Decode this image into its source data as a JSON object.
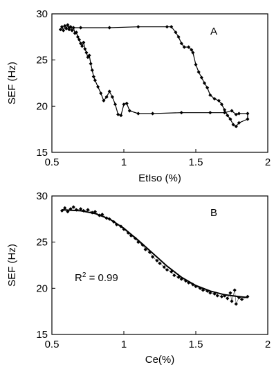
{
  "chart_data": [
    {
      "type": "line",
      "panel_label": "A",
      "xlabel": "EtIso (%)",
      "ylabel": "SEF (Hz)",
      "xlim": [
        0.5,
        2
      ],
      "ylim": [
        15,
        30
      ],
      "x_ticks": [
        "0.5",
        "1",
        "1.5",
        "2"
      ],
      "y_ticks": [
        "15",
        "20",
        "25",
        "30"
      ],
      "grid": false,
      "series": [
        {
          "points": [
            [
              0.56,
              28.3
            ],
            [
              0.57,
              28.6
            ],
            [
              0.58,
              28.2
            ],
            [
              0.59,
              28.7
            ],
            [
              0.6,
              28.4
            ],
            [
              0.61,
              28.8
            ],
            [
              0.62,
              28.3
            ],
            [
              0.63,
              28.6
            ],
            [
              0.64,
              28.2
            ],
            [
              0.65,
              28.5
            ],
            [
              0.66,
              27.9
            ],
            [
              0.67,
              28.0
            ],
            [
              0.68,
              27.5
            ],
            [
              0.69,
              27.2
            ],
            [
              0.7,
              26.8
            ],
            [
              0.71,
              26.5
            ],
            [
              0.72,
              26.9
            ],
            [
              0.73,
              26.2
            ],
            [
              0.74,
              25.8
            ],
            [
              0.75,
              25.3
            ],
            [
              0.76,
              25.5
            ],
            [
              0.77,
              24.6
            ],
            [
              0.78,
              23.9
            ],
            [
              0.79,
              23.2
            ],
            [
              0.8,
              22.8
            ],
            [
              0.82,
              22.1
            ],
            [
              0.84,
              21.4
            ],
            [
              0.86,
              20.6
            ],
            [
              0.88,
              21.0
            ],
            [
              0.9,
              21.6
            ],
            [
              0.92,
              21.0
            ],
            [
              0.94,
              20.2
            ],
            [
              0.96,
              19.1
            ],
            [
              0.98,
              19.0
            ],
            [
              1.0,
              20.2
            ],
            [
              1.02,
              20.3
            ],
            [
              1.04,
              19.5
            ],
            [
              1.1,
              19.2
            ],
            [
              1.2,
              19.2
            ],
            [
              1.4,
              19.3
            ],
            [
              1.6,
              19.3
            ],
            [
              1.7,
              19.3
            ],
            [
              1.75,
              19.5
            ],
            [
              1.78,
              19.1
            ],
            [
              1.8,
              19.2
            ],
            [
              1.86,
              19.2
            ],
            [
              1.86,
              18.6
            ],
            [
              1.8,
              18.2
            ],
            [
              1.78,
              17.8
            ],
            [
              1.76,
              18.0
            ],
            [
              1.74,
              18.6
            ],
            [
              1.72,
              19.0
            ],
            [
              1.7,
              19.6
            ],
            [
              1.68,
              20.2
            ],
            [
              1.66,
              20.6
            ],
            [
              1.63,
              20.8
            ],
            [
              1.6,
              21.2
            ],
            [
              1.58,
              22.0
            ],
            [
              1.56,
              22.5
            ],
            [
              1.54,
              23.1
            ],
            [
              1.52,
              23.7
            ],
            [
              1.5,
              24.5
            ],
            [
              1.48,
              25.8
            ],
            [
              1.47,
              26.1
            ],
            [
              1.45,
              26.4
            ],
            [
              1.42,
              26.4
            ],
            [
              1.4,
              26.8
            ],
            [
              1.38,
              27.5
            ],
            [
              1.36,
              28.0
            ],
            [
              1.33,
              28.6
            ],
            [
              1.3,
              28.6
            ],
            [
              1.1,
              28.6
            ],
            [
              0.9,
              28.5
            ],
            [
              0.7,
              28.5
            ],
            [
              0.62,
              28.5
            ]
          ]
        }
      ]
    },
    {
      "type": "scatter",
      "panel_label": "B",
      "xlabel": "Ce(%)",
      "ylabel": "SEF (Hz)",
      "xlim": [
        0.5,
        2
      ],
      "ylim": [
        15,
        30
      ],
      "x_ticks": [
        "0.5",
        "1",
        "1.5",
        "2"
      ],
      "y_ticks": [
        "15",
        "20",
        "25",
        "30"
      ],
      "grid": false,
      "annotation": "R2 = 0.99",
      "series": [
        {
          "points": [
            [
              0.57,
              28.4
            ],
            [
              0.59,
              28.7
            ],
            [
              0.61,
              28.3
            ],
            [
              0.63,
              28.6
            ],
            [
              0.65,
              28.8
            ],
            [
              0.67,
              28.5
            ],
            [
              0.7,
              28.6
            ],
            [
              0.72,
              28.4
            ],
            [
              0.75,
              28.5
            ],
            [
              0.78,
              28.2
            ],
            [
              0.8,
              28.3
            ],
            [
              0.83,
              27.9
            ],
            [
              0.85,
              28.0
            ],
            [
              0.88,
              27.6
            ],
            [
              0.9,
              27.5
            ],
            [
              0.93,
              27.2
            ],
            [
              0.95,
              26.9
            ],
            [
              0.98,
              26.7
            ],
            [
              1.0,
              26.4
            ],
            [
              1.03,
              26.0
            ],
            [
              1.05,
              25.7
            ],
            [
              1.08,
              25.4
            ],
            [
              1.1,
              25.0
            ],
            [
              1.13,
              24.7
            ],
            [
              1.15,
              24.2
            ],
            [
              1.18,
              23.9
            ],
            [
              1.2,
              23.4
            ],
            [
              1.23,
              23.0
            ],
            [
              1.25,
              22.7
            ],
            [
              1.28,
              22.3
            ],
            [
              1.3,
              22.0
            ],
            [
              1.33,
              21.8
            ],
            [
              1.35,
              21.4
            ],
            [
              1.38,
              21.2
            ],
            [
              1.4,
              21.0
            ],
            [
              1.43,
              20.8
            ],
            [
              1.45,
              20.6
            ],
            [
              1.48,
              20.4
            ],
            [
              1.5,
              20.2
            ],
            [
              1.53,
              20.0
            ],
            [
              1.55,
              19.8
            ],
            [
              1.58,
              19.7
            ],
            [
              1.6,
              19.5
            ],
            [
              1.63,
              19.4
            ],
            [
              1.65,
              19.2
            ],
            [
              1.68,
              19.1
            ],
            [
              1.7,
              19.2
            ],
            [
              1.72,
              18.9
            ],
            [
              1.74,
              19.5
            ],
            [
              1.75,
              18.6
            ],
            [
              1.77,
              19.8
            ],
            [
              1.78,
              18.3
            ],
            [
              1.8,
              19.0
            ],
            [
              1.82,
              18.8
            ],
            [
              1.86,
              19.1
            ]
          ]
        },
        {
          "name": "fit",
          "points": [
            [
              0.57,
              28.5
            ],
            [
              0.7,
              28.4
            ],
            [
              0.8,
              28.1
            ],
            [
              0.9,
              27.5
            ],
            [
              1.0,
              26.5
            ],
            [
              1.1,
              25.2
            ],
            [
              1.2,
              23.8
            ],
            [
              1.3,
              22.4
            ],
            [
              1.4,
              21.2
            ],
            [
              1.5,
              20.3
            ],
            [
              1.6,
              19.7
            ],
            [
              1.7,
              19.3
            ],
            [
              1.8,
              19.1
            ],
            [
              1.86,
              19.0
            ]
          ]
        }
      ]
    }
  ]
}
